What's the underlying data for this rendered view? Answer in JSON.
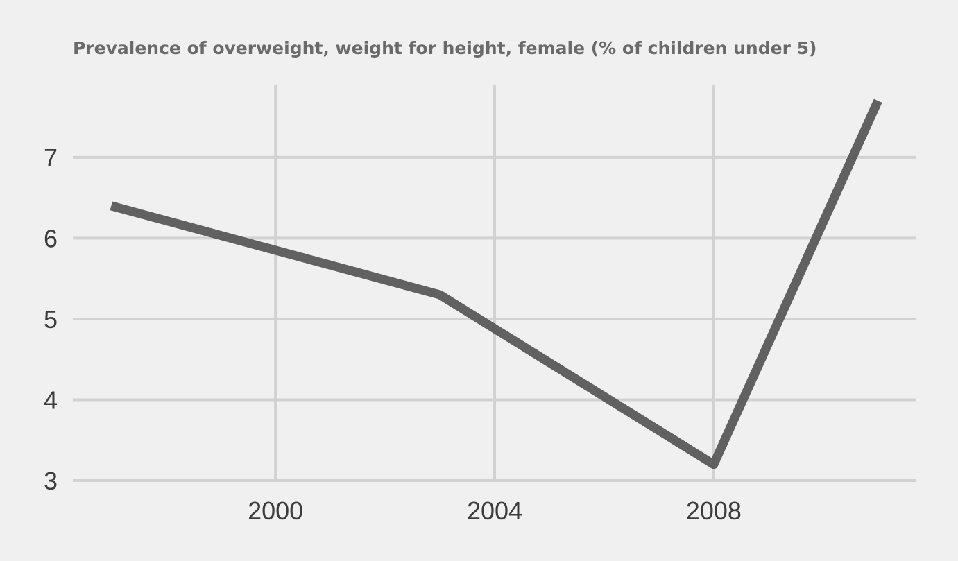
{
  "chart_data": {
    "type": "line",
    "title": "Prevalence of overweight, weight for height, female (% of children under 5)",
    "xlabel": "",
    "ylabel": "",
    "x": [
      1997,
      2003,
      2008,
      2011
    ],
    "series": [
      {
        "values": [
          6.4,
          5.3,
          3.2,
          7.7
        ]
      }
    ],
    "xlim": [
      1996.3,
      2011.7
    ],
    "ylim": [
      3,
      7.9
    ],
    "x_ticks": [
      2000,
      2004,
      2008
    ],
    "x_tick_labels": [
      "2000",
      "2004",
      "2008"
    ],
    "y_ticks": [
      3,
      4,
      5,
      6,
      7
    ],
    "y_tick_labels": [
      "3",
      "4",
      "5",
      "6",
      "7"
    ],
    "grid": true,
    "legend": "none",
    "colors": {
      "background": "#f0f0f0",
      "grid": "#d2d2d2",
      "line": "#595959",
      "title": "#6a6a6a",
      "tick_labels": "#3c3c3c"
    }
  }
}
